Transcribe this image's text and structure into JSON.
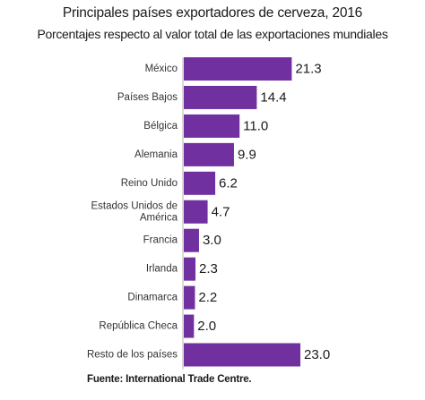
{
  "chart_data": {
    "type": "bar",
    "orientation": "horizontal",
    "title": "Principales países exportadores de cerveza, 2016",
    "subtitle": "Porcentajes respecto al valor total de las exportaciones mundiales",
    "categories": [
      "México",
      "Países Bajos",
      "Bélgica",
      "Alemania",
      "Reino Unido",
      "Estados Unidos de América",
      "Francia",
      "Irlanda",
      "Dinamarca",
      "República Checa",
      "Resto de los países"
    ],
    "category_lines": [
      [
        "México"
      ],
      [
        "Países Bajos"
      ],
      [
        "Bélgica"
      ],
      [
        "Alemania"
      ],
      [
        "Reino Unido"
      ],
      [
        "Estados Unidos de",
        "América"
      ],
      [
        "Francia"
      ],
      [
        "Irlanda"
      ],
      [
        "Dinamarca"
      ],
      [
        "República Checa"
      ],
      [
        "Resto de los países"
      ]
    ],
    "values": [
      21.3,
      14.4,
      11.0,
      9.9,
      6.2,
      4.7,
      3.0,
      2.3,
      2.2,
      2.0,
      23.0
    ],
    "value_labels": [
      "21.3",
      "14.4",
      "11.0",
      "9.9",
      "6.2",
      "4.7",
      "3.0",
      "2.3",
      "2.2",
      "2.0",
      "23.0"
    ],
    "xlim": [
      0,
      23.0
    ],
    "grid": false,
    "legend": "none",
    "bar_color": "#7030a0",
    "source": "Fuente: International Trade Centre."
  }
}
